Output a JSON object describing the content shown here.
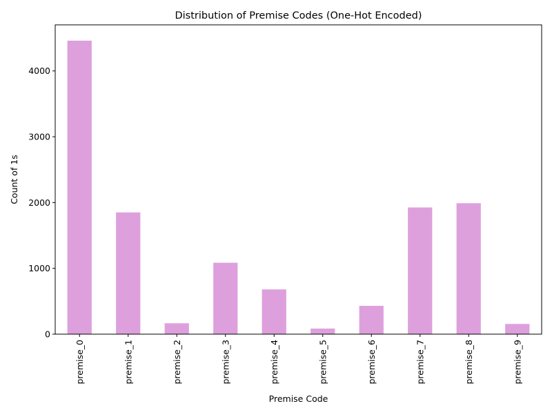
{
  "chart_data": {
    "type": "bar",
    "title": "Distribution of Premise Codes (One-Hot Encoded)",
    "xlabel": "Premise Code",
    "ylabel": "Count of 1s",
    "categories": [
      "premise_0",
      "premise_1",
      "premise_2",
      "premise_3",
      "premise_4",
      "premise_5",
      "premise_6",
      "premise_7",
      "premise_8",
      "premise_9"
    ],
    "values": [
      4460,
      1850,
      165,
      1085,
      680,
      85,
      430,
      1925,
      1990,
      155
    ],
    "ylim": [
      0,
      4700
    ],
    "yticks": [
      0,
      1000,
      2000,
      3000,
      4000
    ],
    "bar_color": "#dda0dd",
    "grid": false,
    "legend": "none"
  }
}
